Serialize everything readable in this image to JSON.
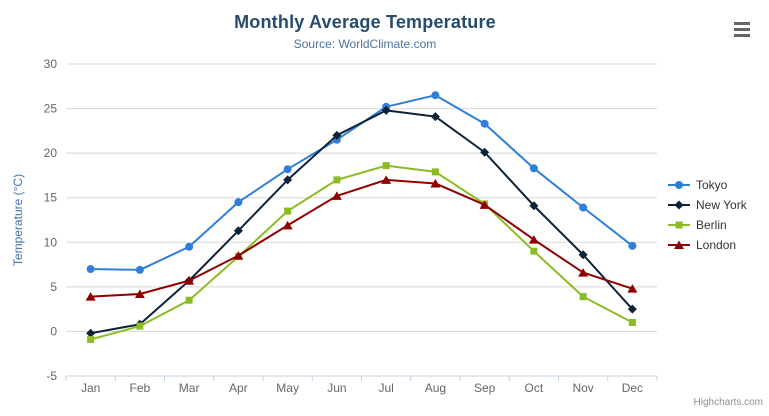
{
  "chart_data": {
    "type": "line",
    "title": "Monthly Average Temperature",
    "subtitle": "Source: WorldClimate.com",
    "xlabel": "",
    "ylabel": "Temperature (°C)",
    "ylim": [
      -5,
      30
    ],
    "ytick_interval": 5,
    "grid": true,
    "legend_position": "right",
    "categories": [
      "Jan",
      "Feb",
      "Mar",
      "Apr",
      "May",
      "Jun",
      "Jul",
      "Aug",
      "Sep",
      "Oct",
      "Nov",
      "Dec"
    ],
    "series": [
      {
        "name": "Tokyo",
        "color": "#2f7ed8",
        "marker": "circle",
        "values": [
          7.0,
          6.9,
          9.5,
          14.5,
          18.2,
          21.5,
          25.2,
          26.5,
          23.3,
          18.3,
          13.9,
          9.6
        ]
      },
      {
        "name": "New York",
        "color": "#0d233a",
        "marker": "diamond",
        "values": [
          -0.2,
          0.8,
          5.7,
          11.3,
          17.0,
          22.0,
          24.8,
          24.1,
          20.1,
          14.1,
          8.6,
          2.5
        ]
      },
      {
        "name": "Berlin",
        "color": "#8bbc21",
        "marker": "square",
        "values": [
          -0.9,
          0.6,
          3.5,
          8.4,
          13.5,
          17.0,
          18.6,
          17.9,
          14.3,
          9.0,
          3.9,
          1.0
        ]
      },
      {
        "name": "London",
        "color": "#910000",
        "marker": "triangle",
        "values": [
          3.9,
          4.2,
          5.7,
          8.5,
          11.9,
          15.2,
          17.0,
          16.6,
          14.2,
          10.3,
          6.6,
          4.8
        ]
      }
    ]
  },
  "credits": {
    "label": "Highcharts.com"
  },
  "styling": {
    "grid_color": "#d8d8d8",
    "axis_line_color": "#c0d0e0",
    "tick_label_color": "#666666"
  }
}
